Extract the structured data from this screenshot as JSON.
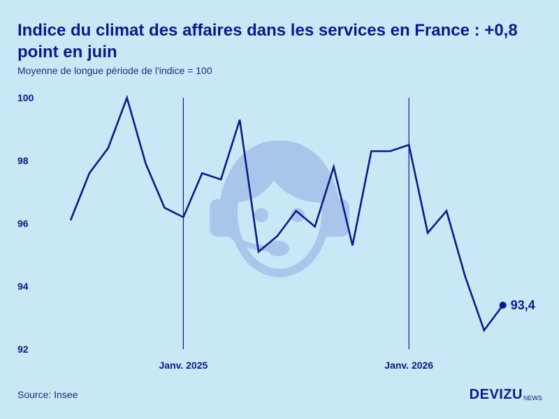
{
  "title": "Indice du climat des affaires dans les services en France : +0,8 point en juin",
  "subtitle": "Moyenne de longue période de l'indice = 100",
  "source": "Source: Insee",
  "brand": {
    "name": "DEVIZU",
    "suffix": "NEWS"
  },
  "colors": {
    "background": "#c8e8f8",
    "line": "#0a1a8c",
    "watermark": "#a4c0e8"
  },
  "watermark_icon": "support-agent-headset-icon",
  "chart_data": {
    "type": "line",
    "title": "Indice du climat des affaires dans les services en France : +0,8 point en juin",
    "ylim": [
      92,
      100
    ],
    "yticks": [
      "100",
      "98",
      "96",
      "94",
      "92"
    ],
    "ytick_values": [
      100,
      98,
      96,
      94,
      92
    ],
    "xtick_labels": [
      "Janv. 2025",
      "Janv. 2026"
    ],
    "xtick_index": [
      6,
      18
    ],
    "grid": false,
    "end_label": "93,4",
    "values": [
      96.1,
      97.6,
      98.4,
      100.0,
      97.9,
      96.5,
      96.2,
      97.6,
      97.4,
      99.3,
      95.1,
      95.6,
      96.4,
      95.9,
      97.8,
      95.3,
      98.3,
      98.3,
      98.5,
      95.7,
      96.4,
      94.3,
      92.6,
      93.4
    ]
  }
}
